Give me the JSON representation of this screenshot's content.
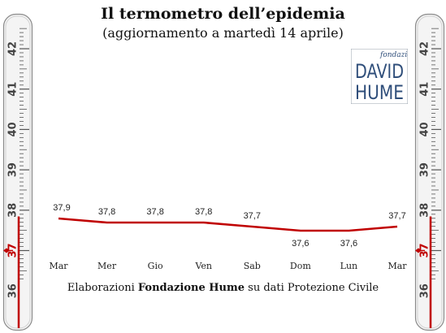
{
  "header": {
    "title": "Il termometro dell’epidemia",
    "subtitle": "(aggiornamento a martedì 14 aprile)"
  },
  "logo": {
    "small": "fondazione",
    "word1": "DAVID",
    "word2": "HUME"
  },
  "thermometer": {
    "labels": [
      "42",
      "41",
      "40",
      "39",
      "38",
      "37",
      "36"
    ],
    "marker_value": "37"
  },
  "footer": {
    "prefix": "Elaborazioni",
    "bold": "Fondazione Hume",
    "suffix": "su dati Protezione Civile"
  },
  "colors": {
    "line": "#c00000",
    "thermo_red": "#c00000",
    "logo_blue": "#2f4e7a"
  },
  "chart_data": {
    "type": "line",
    "categories": [
      "Mar",
      "Mer",
      "Gio",
      "Ven",
      "Sab",
      "Dom",
      "Lun",
      "Mar"
    ],
    "series": [
      {
        "values": [
          37.9,
          37.8,
          37.8,
          37.8,
          37.7,
          37.6,
          37.6,
          37.7
        ]
      }
    ],
    "data_labels": [
      "37,9",
      "37,8",
      "37,8",
      "37,8",
      "37,7",
      "37,6",
      "37,6",
      "37,7"
    ]
  }
}
